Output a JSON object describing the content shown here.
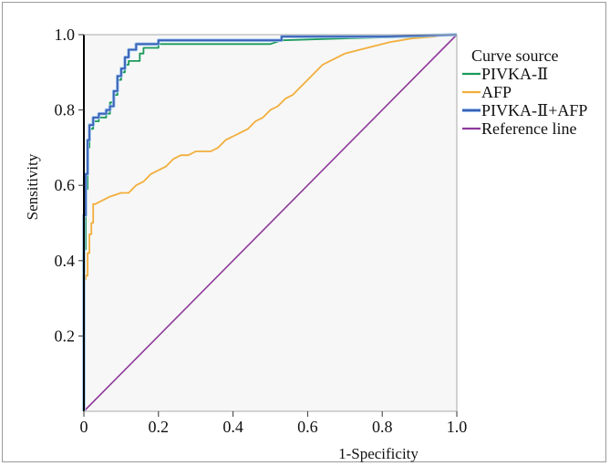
{
  "chart_data": {
    "type": "line",
    "xlabel": "1-Specificity",
    "ylabel": "Sensitivity",
    "xlim": [
      0,
      1
    ],
    "ylim": [
      0,
      1
    ],
    "grid": false,
    "legend_position": "right",
    "legend_title": "Curve source",
    "x_ticks": [
      {
        "v": 0,
        "label": "0"
      },
      {
        "v": 0.2,
        "label": "0.2"
      },
      {
        "v": 0.4,
        "label": "0.4"
      },
      {
        "v": 0.6,
        "label": "0.6"
      },
      {
        "v": 0.8,
        "label": "0.8"
      },
      {
        "v": 1.0,
        "label": "1.0"
      }
    ],
    "y_ticks": [
      {
        "v": 0.2,
        "label": "0.2"
      },
      {
        "v": 0.4,
        "label": "0.4"
      },
      {
        "v": 0.6,
        "label": "0.6"
      },
      {
        "v": 0.8,
        "label": "0.8"
      },
      {
        "v": 1.0,
        "label": "1.0"
      }
    ],
    "series": [
      {
        "name": "PIVKA-Ⅱ",
        "color": "#1a9a5a",
        "points": [
          [
            0,
            0
          ],
          [
            0,
            0.43
          ],
          [
            0.005,
            0.43
          ],
          [
            0.005,
            0.59
          ],
          [
            0.01,
            0.59
          ],
          [
            0.01,
            0.7
          ],
          [
            0.015,
            0.7
          ],
          [
            0.015,
            0.75
          ],
          [
            0.025,
            0.75
          ],
          [
            0.025,
            0.77
          ],
          [
            0.04,
            0.77
          ],
          [
            0.04,
            0.78
          ],
          [
            0.06,
            0.78
          ],
          [
            0.06,
            0.79
          ],
          [
            0.07,
            0.79
          ],
          [
            0.07,
            0.82
          ],
          [
            0.08,
            0.82
          ],
          [
            0.08,
            0.84
          ],
          [
            0.09,
            0.84
          ],
          [
            0.09,
            0.88
          ],
          [
            0.1,
            0.88
          ],
          [
            0.1,
            0.9
          ],
          [
            0.11,
            0.9
          ],
          [
            0.11,
            0.92
          ],
          [
            0.12,
            0.92
          ],
          [
            0.12,
            0.93
          ],
          [
            0.15,
            0.93
          ],
          [
            0.15,
            0.95
          ],
          [
            0.16,
            0.95
          ],
          [
            0.16,
            0.965
          ],
          [
            0.2,
            0.965
          ],
          [
            0.2,
            0.975
          ],
          [
            0.5,
            0.975
          ],
          [
            0.53,
            0.985
          ],
          [
            0.7,
            0.99
          ],
          [
            0.9,
            0.995
          ],
          [
            1.0,
            1.0
          ]
        ]
      },
      {
        "name": "AFP",
        "color": "#f2ae3c",
        "points": [
          [
            0,
            0
          ],
          [
            0,
            0.35
          ],
          [
            0.005,
            0.35
          ],
          [
            0.005,
            0.36
          ],
          [
            0.01,
            0.36
          ],
          [
            0.01,
            0.42
          ],
          [
            0.015,
            0.42
          ],
          [
            0.015,
            0.47
          ],
          [
            0.02,
            0.47
          ],
          [
            0.02,
            0.5
          ],
          [
            0.025,
            0.5
          ],
          [
            0.025,
            0.55
          ],
          [
            0.03,
            0.55
          ],
          [
            0.05,
            0.56
          ],
          [
            0.07,
            0.57
          ],
          [
            0.1,
            0.58
          ],
          [
            0.12,
            0.58
          ],
          [
            0.14,
            0.6
          ],
          [
            0.16,
            0.61
          ],
          [
            0.18,
            0.63
          ],
          [
            0.2,
            0.64
          ],
          [
            0.22,
            0.65
          ],
          [
            0.24,
            0.67
          ],
          [
            0.26,
            0.68
          ],
          [
            0.28,
            0.68
          ],
          [
            0.3,
            0.69
          ],
          [
            0.34,
            0.69
          ],
          [
            0.36,
            0.7
          ],
          [
            0.38,
            0.72
          ],
          [
            0.4,
            0.73
          ],
          [
            0.42,
            0.74
          ],
          [
            0.44,
            0.75
          ],
          [
            0.46,
            0.77
          ],
          [
            0.48,
            0.78
          ],
          [
            0.5,
            0.8
          ],
          [
            0.52,
            0.81
          ],
          [
            0.54,
            0.83
          ],
          [
            0.56,
            0.84
          ],
          [
            0.58,
            0.86
          ],
          [
            0.6,
            0.88
          ],
          [
            0.62,
            0.9
          ],
          [
            0.64,
            0.92
          ],
          [
            0.66,
            0.93
          ],
          [
            0.68,
            0.94
          ],
          [
            0.7,
            0.95
          ],
          [
            0.74,
            0.96
          ],
          [
            0.78,
            0.97
          ],
          [
            0.82,
            0.98
          ],
          [
            0.88,
            0.99
          ],
          [
            0.94,
            0.995
          ],
          [
            0.97,
            1.0
          ],
          [
            1.0,
            1.0
          ]
        ]
      },
      {
        "name": "PIVKA-Ⅱ+AFP",
        "color": "#3b5fb5",
        "points": [
          [
            0,
            0
          ],
          [
            0,
            0.52
          ],
          [
            0.005,
            0.52
          ],
          [
            0.005,
            0.63
          ],
          [
            0.01,
            0.63
          ],
          [
            0.01,
            0.72
          ],
          [
            0.015,
            0.72
          ],
          [
            0.015,
            0.76
          ],
          [
            0.025,
            0.76
          ],
          [
            0.025,
            0.78
          ],
          [
            0.04,
            0.78
          ],
          [
            0.04,
            0.79
          ],
          [
            0.06,
            0.79
          ],
          [
            0.06,
            0.8
          ],
          [
            0.07,
            0.8
          ],
          [
            0.07,
            0.81
          ],
          [
            0.08,
            0.81
          ],
          [
            0.08,
            0.85
          ],
          [
            0.09,
            0.85
          ],
          [
            0.09,
            0.89
          ],
          [
            0.1,
            0.89
          ],
          [
            0.1,
            0.91
          ],
          [
            0.11,
            0.91
          ],
          [
            0.11,
            0.94
          ],
          [
            0.12,
            0.94
          ],
          [
            0.12,
            0.96
          ],
          [
            0.14,
            0.96
          ],
          [
            0.14,
            0.975
          ],
          [
            0.2,
            0.975
          ],
          [
            0.2,
            0.985
          ],
          [
            0.53,
            0.985
          ],
          [
            0.53,
            0.995
          ],
          [
            0.8,
            0.995
          ],
          [
            1.0,
            1.0
          ]
        ]
      },
      {
        "name": "Reference line",
        "color": "#8e3a9a",
        "points": [
          [
            0,
            0
          ],
          [
            1,
            1
          ]
        ]
      }
    ]
  }
}
